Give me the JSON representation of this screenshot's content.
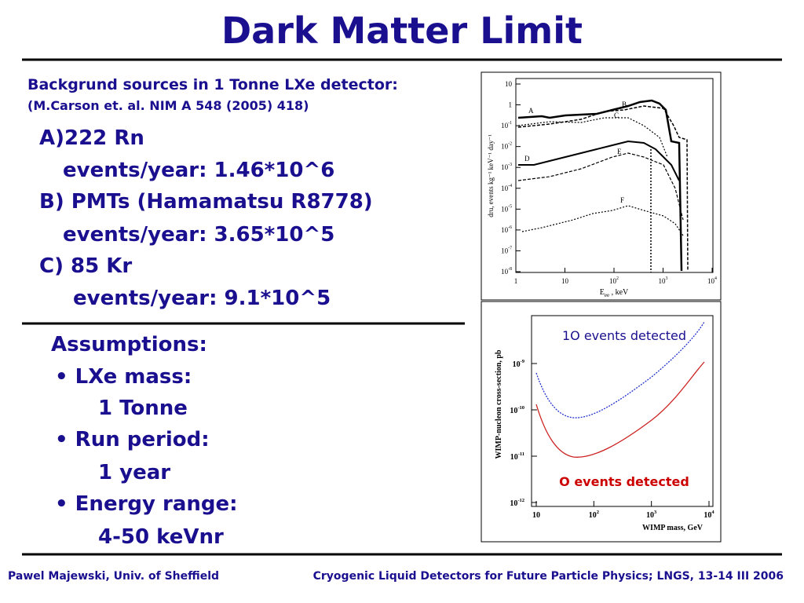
{
  "title": "Dark Matter Limit",
  "sources": {
    "heading": "Backgrund sources in 1 Tonne LXe detector:",
    "reference": "(M.Carson et. al. NIM A 548 (2005) 418)",
    "items": [
      {
        "label": "A)222 Rn",
        "rate": "events/year: 1.46*10^6"
      },
      {
        "label": "B) PMTs (Hamamatsu R8778)",
        "rate": "events/year: 3.65*10^5"
      },
      {
        "label": "C) 85 Kr",
        "rate": "events/year: 9.1*10^5"
      }
    ]
  },
  "assumptions": {
    "heading": "Assumptions:",
    "items": [
      {
        "label": "• LXe mass:",
        "value": "1 Tonne"
      },
      {
        "label": "• Run period:",
        "value": "1 year"
      },
      {
        "label": "• Energy range:",
        "value": "4-50 keVnr"
      }
    ]
  },
  "plot1": {
    "ylabel": "dru, events kg⁻¹ keV⁻¹ day⁻¹",
    "xlabel": {
      "main": "E",
      "sub": "ee",
      "rest": " , keV"
    },
    "yticks": [
      {
        "base": "10"
      },
      {
        "base": "1"
      },
      {
        "base": "10",
        "exp": "-1"
      },
      {
        "base": "10",
        "exp": "-2"
      },
      {
        "base": "10",
        "exp": "-3"
      },
      {
        "base": "10",
        "exp": "-4"
      },
      {
        "base": "10",
        "exp": "-5"
      },
      {
        "base": "10",
        "exp": "-6"
      },
      {
        "base": "10",
        "exp": "-7"
      },
      {
        "base": "10",
        "exp": "-8"
      }
    ],
    "xticks": [
      {
        "base": "1"
      },
      {
        "base": "10"
      },
      {
        "base": "10",
        "exp": "2"
      },
      {
        "base": "10",
        "exp": "3"
      },
      {
        "base": "10",
        "exp": "4"
      }
    ],
    "curves": [
      "A",
      "B",
      "C",
      "D",
      "E",
      "F"
    ]
  },
  "plot2": {
    "ylabel": "WIMP-nucleon cross-section, pb",
    "xlabel": "WIMP mass, GeV",
    "yticks": [
      {
        "base": "10",
        "exp": "-9"
      },
      {
        "base": "10",
        "exp": "-10"
      },
      {
        "base": "10",
        "exp": "-11"
      },
      {
        "base": "10",
        "exp": "-12"
      }
    ],
    "xticks": [
      {
        "base": "10"
      },
      {
        "base": "10",
        "exp": "2"
      },
      {
        "base": "10",
        "exp": "3"
      },
      {
        "base": "10",
        "exp": "4"
      }
    ],
    "upper_label": "1O events detected",
    "lower_label": "O events detected"
  },
  "footer": {
    "left": "Pawel Majewski, Univ. of Sheffield",
    "right": "Cryogenic Liquid Detectors for Future Particle Physics; LNGS, 13-14 III 2006"
  }
}
